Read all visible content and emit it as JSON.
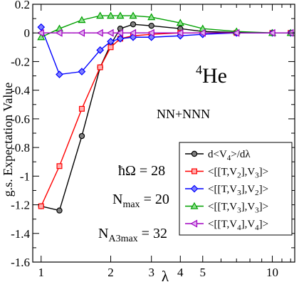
{
  "chart_data": {
    "type": "line",
    "xlabel": "λ",
    "ylabel": "g.s. Expectation Value",
    "x_scale": "log",
    "xlim": [
      0.92,
      12.5
    ],
    "ylim": [
      -1.6,
      0.2
    ],
    "x_ticks": [
      1,
      2,
      3,
      4,
      5,
      10
    ],
    "y_ticks": [
      -1.6,
      -1.4,
      -1.2,
      -1,
      -0.8,
      -0.6,
      -0.4,
      -0.2,
      0,
      0.2
    ],
    "y_tick_labels": [
      "-1.6",
      "-1.4",
      "-1.2",
      "-1",
      "-0.8",
      "-0.6",
      "-0.4",
      "-0.2",
      "0",
      "0.2"
    ],
    "legend_position": "bottom-right",
    "annotations": {
      "nucleus_mass": "4",
      "nucleus_symbol": "He",
      "interaction": "NN+NNN",
      "hbar_omega": "ħΩ = 28",
      "nmax_base": "N",
      "nmax_sub": "max",
      "nmax_value": " = 20",
      "na3max_base": "N",
      "na3max_sub": "A3max",
      "na3max_value": " = 32"
    },
    "series": [
      {
        "name": "d<V4>/dλ",
        "legend_main": "d<V",
        "legend_sub": "4",
        "legend_tail": ">/dλ",
        "color": "#000000",
        "fill": "#808080",
        "marker": "circle",
        "x": [
          1.0,
          1.2,
          1.5,
          1.8,
          2.0,
          2.2,
          2.5,
          3.0,
          4.0,
          5.0,
          7.0,
          10.0,
          12.0
        ],
        "y": [
          -1.21,
          -1.24,
          -0.72,
          -0.24,
          -0.08,
          0.03,
          0.06,
          0.05,
          0.03,
          0.01,
          0.003,
          0.0,
          0.0
        ]
      },
      {
        "name": "<[[T,V2],V3]>",
        "legend_main": "<[[T,V",
        "legend_sub": "2",
        "legend_mid": "],V",
        "legend_sub2": "3",
        "legend_tail": "]>",
        "color": "#ff0000",
        "fill": "#ffb0b0",
        "marker": "square",
        "x": [
          1.0,
          1.2,
          1.5,
          1.8,
          2.0,
          2.2,
          2.5,
          3.0,
          4.0,
          5.0,
          7.0,
          10.0,
          12.0
        ],
        "y": [
          -1.21,
          -0.93,
          -0.53,
          -0.24,
          -0.1,
          -0.04,
          -0.02,
          -0.01,
          0.0,
          0.0,
          0.0,
          0.0,
          0.0
        ]
      },
      {
        "name": "<[[T,V3],V2]>",
        "legend_main": "<[[T,V",
        "legend_sub": "3",
        "legend_mid": "],V",
        "legend_sub2": "2",
        "legend_tail": "]>",
        "color": "#0000ff",
        "fill": "#8080ff",
        "marker": "diamond",
        "x": [
          1.0,
          1.2,
          1.5,
          1.8,
          2.0,
          2.2,
          2.5,
          3.0,
          4.0,
          5.0,
          7.0,
          10.0,
          12.0
        ],
        "y": [
          0.04,
          -0.29,
          -0.27,
          -0.12,
          -0.06,
          -0.04,
          -0.03,
          -0.03,
          -0.02,
          -0.01,
          0.0,
          0.0,
          0.0
        ]
      },
      {
        "name": "<[[T,V3],V3]>",
        "legend_main": "<[[T,V",
        "legend_sub": "3",
        "legend_mid": "],V",
        "legend_sub2": "3",
        "legend_tail": "]>",
        "color": "#00a000",
        "fill": "#90e090",
        "marker": "triangle-up",
        "x": [
          1.0,
          1.2,
          1.5,
          1.8,
          2.0,
          2.2,
          2.5,
          3.0,
          4.0,
          5.0,
          7.0,
          10.0,
          12.0
        ],
        "y": [
          -0.03,
          0.03,
          0.09,
          0.12,
          0.12,
          0.12,
          0.12,
          0.11,
          0.07,
          0.03,
          0.01,
          0.0,
          0.0
        ]
      },
      {
        "name": "<[[T,V4],V4]>",
        "legend_main": "<[[T,V",
        "legend_sub": "4",
        "legend_mid": "],V",
        "legend_sub2": "4",
        "legend_tail": "]>",
        "color": "#a000c0",
        "fill": "#e0b0f0",
        "marker": "triangle-left",
        "x": [
          1.0,
          1.2,
          1.5,
          1.8,
          2.0,
          2.2,
          2.5,
          3.0,
          4.0,
          5.0,
          7.0,
          10.0,
          12.0
        ],
        "y": [
          0.0,
          0.0,
          0.0,
          0.0,
          0.0,
          0.0,
          0.0,
          0.0,
          0.0,
          0.0,
          0.0,
          0.0,
          0.0
        ]
      }
    ]
  }
}
